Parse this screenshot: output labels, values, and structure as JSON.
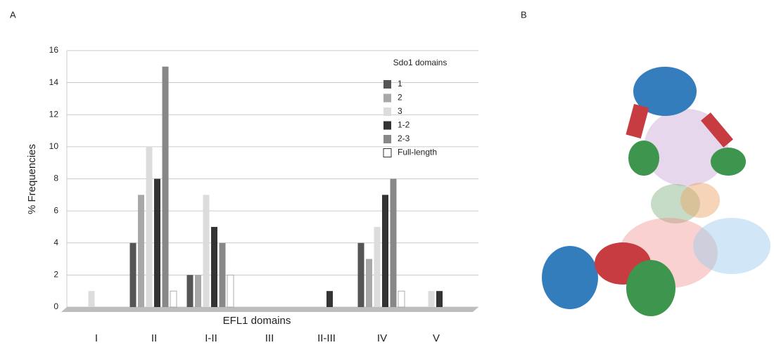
{
  "panel_labels": [
    "A",
    "B"
  ],
  "chart_data": {
    "type": "bar",
    "x_label": "EFL1 domains",
    "y_label": "% Frequencies",
    "legend_title": "Sdo1 domains",
    "categories": [
      "I",
      "II",
      "I-II",
      "III",
      "II-III",
      "IV",
      "V"
    ],
    "series": [
      {
        "name": "1",
        "color": "#555555",
        "values": [
          0,
          4,
          2,
          0,
          0,
          4,
          0
        ]
      },
      {
        "name": "2",
        "color": "#a8a8a8",
        "values": [
          0,
          7,
          2,
          0,
          0,
          3,
          0
        ]
      },
      {
        "name": "3",
        "color": "#dcdcdc",
        "values": [
          1,
          10,
          7,
          0,
          0,
          5,
          1
        ]
      },
      {
        "name": "1-2",
        "color": "#333333",
        "values": [
          0,
          8,
          5,
          0,
          1,
          7,
          1
        ]
      },
      {
        "name": "2-3",
        "color": "#888888",
        "values": [
          0,
          15,
          4,
          0,
          0,
          8,
          0
        ]
      },
      {
        "name": "Full-length",
        "color": "#ffffff",
        "values": [
          0,
          1,
          2,
          0,
          0,
          1,
          0
        ]
      }
    ],
    "ylim": [
      0,
      16
    ],
    "yticks": [
      0,
      2,
      4,
      6,
      8,
      10,
      12,
      14,
      16
    ],
    "grid": true
  }
}
